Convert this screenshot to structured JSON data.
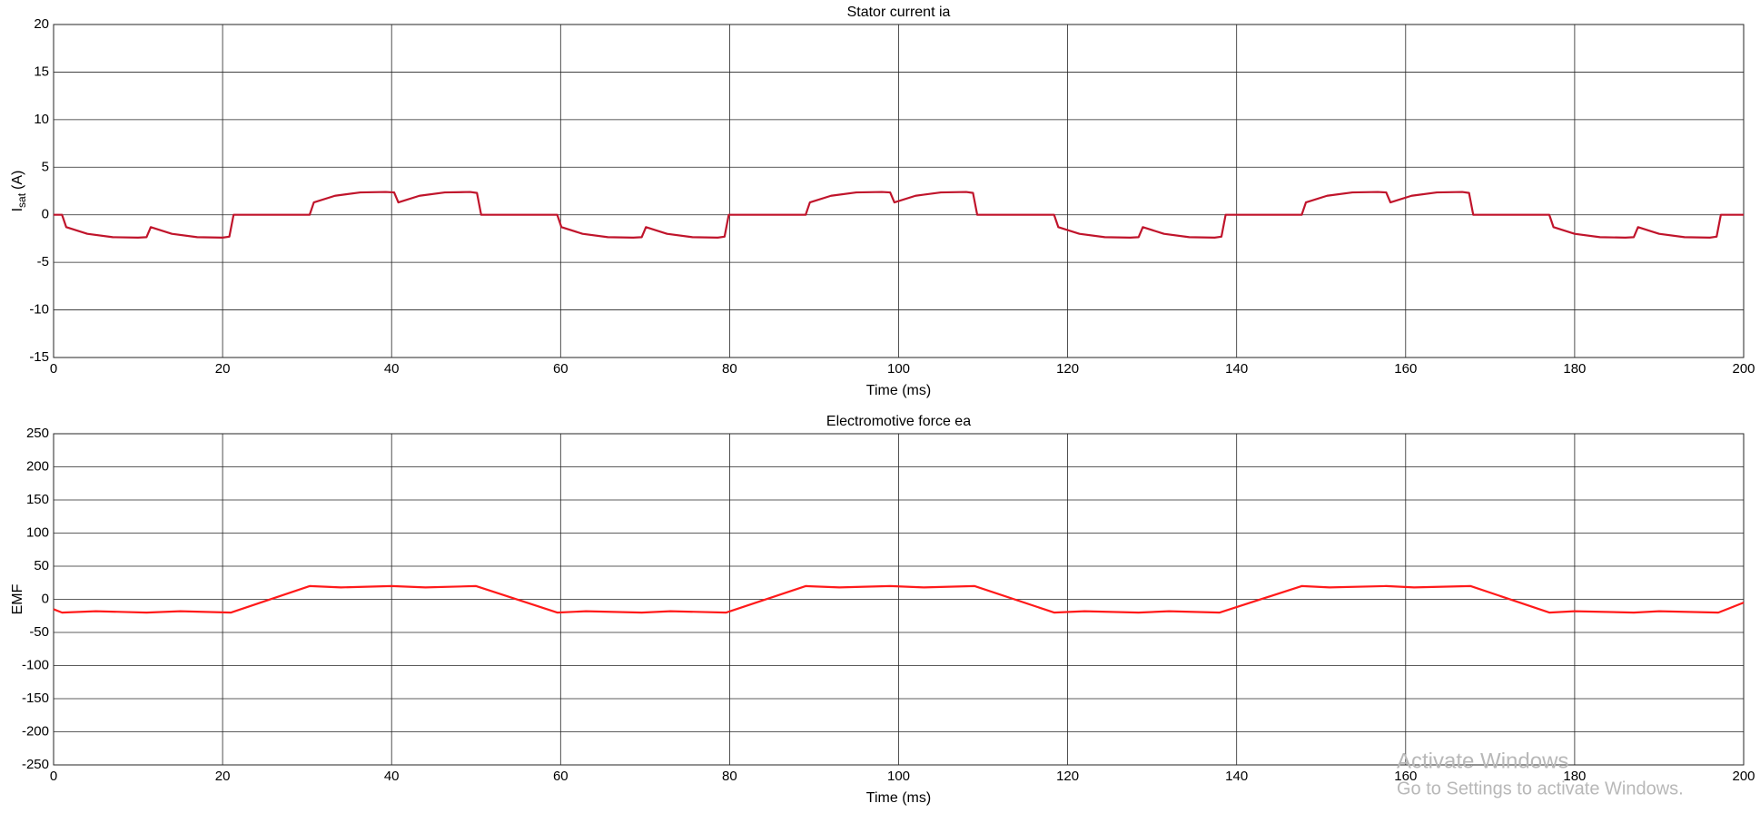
{
  "chart_data": [
    {
      "type": "line",
      "title": "Stator current ia",
      "xlabel": "Time (ms)",
      "ylabel": {
        "main": "I",
        "sub": "sat",
        "suffix": "(A)"
      },
      "xlim": [
        0,
        200
      ],
      "xticks": [
        0,
        20,
        40,
        60,
        80,
        100,
        120,
        140,
        160,
        180,
        200
      ],
      "ylim": [
        -15,
        20
      ],
      "yticks": [
        -15,
        -10,
        -5,
        0,
        5,
        10,
        15,
        20
      ],
      "grid": true,
      "x": [
        0,
        1.0,
        1.5,
        4.0,
        7.0,
        10.0,
        11.0,
        11.5,
        14.0,
        17.0,
        20.0,
        20.8,
        21.3,
        30.3,
        30.8,
        33.3,
        36.3,
        39.3,
        40.3,
        40.8,
        43.3,
        46.3,
        49.3,
        50.1,
        50.6,
        59.6,
        60.1,
        62.6,
        65.6,
        68.6,
        69.6,
        70.1,
        72.6,
        75.6,
        78.6,
        79.4,
        79.9,
        89.0,
        89.5,
        92.0,
        95.0,
        98.0,
        99.0,
        99.5,
        102.0,
        105.0,
        108.0,
        108.8,
        109.3,
        118.4,
        118.9,
        121.4,
        124.4,
        127.4,
        128.4,
        128.9,
        131.4,
        134.4,
        137.4,
        138.2,
        138.7,
        147.7,
        148.2,
        150.7,
        153.7,
        156.7,
        157.7,
        158.2,
        160.7,
        163.7,
        166.7,
        167.5,
        168.0,
        177.0,
        177.5,
        180.0,
        183.0,
        186.0,
        187.0,
        187.5,
        190.0,
        193.0,
        196.0,
        196.8,
        197.3,
        200
      ],
      "series": [
        {
          "name": "ia",
          "color": "#c0142b",
          "values": [
            0,
            0,
            -1.3,
            -2.0,
            -2.35,
            -2.4,
            -2.35,
            -1.3,
            -2.0,
            -2.35,
            -2.4,
            -2.3,
            0,
            0,
            1.3,
            2.0,
            2.35,
            2.4,
            2.35,
            1.3,
            2.0,
            2.35,
            2.4,
            2.3,
            0,
            0,
            -1.3,
            -2.0,
            -2.35,
            -2.4,
            -2.35,
            -1.3,
            -2.0,
            -2.35,
            -2.4,
            -2.3,
            0,
            0,
            1.3,
            2.0,
            2.35,
            2.4,
            2.35,
            1.3,
            2.0,
            2.35,
            2.4,
            2.3,
            0,
            0,
            -1.3,
            -2.0,
            -2.35,
            -2.4,
            -2.35,
            -1.3,
            -2.0,
            -2.35,
            -2.4,
            -2.3,
            0,
            0,
            1.3,
            2.0,
            2.35,
            2.4,
            2.35,
            1.3,
            2.0,
            2.35,
            2.4,
            2.3,
            0,
            0,
            -1.3,
            -2.0,
            -2.35,
            -2.4,
            -2.35,
            -1.3,
            -2.0,
            -2.35,
            -2.4,
            -2.3,
            0,
            0
          ]
        }
      ]
    },
    {
      "type": "line",
      "title": "Electromotive force ea",
      "xlabel": "Time (ms)",
      "ylabel": {
        "main": "EMF"
      },
      "xlim": [
        0,
        200
      ],
      "xticks": [
        0,
        20,
        40,
        60,
        80,
        100,
        120,
        140,
        160,
        180,
        200
      ],
      "ylim": [
        -250,
        250
      ],
      "yticks": [
        -250,
        -200,
        -150,
        -100,
        -50,
        0,
        50,
        100,
        150,
        200,
        250
      ],
      "grid": true,
      "x": [
        0,
        1,
        5,
        11,
        15,
        21,
        30.3,
        34,
        40,
        44,
        50,
        59.6,
        63,
        69.6,
        73,
        79.6,
        89,
        93,
        99,
        103,
        109,
        118.4,
        122,
        128.4,
        132,
        138,
        147.7,
        151,
        157.7,
        161,
        167.7,
        177,
        180,
        187,
        190,
        197,
        200
      ],
      "series": [
        {
          "name": "ea",
          "color": "#ff1a1a",
          "values": [
            -15,
            -20,
            -18,
            -20,
            -18,
            -20,
            20,
            18,
            20,
            18,
            20,
            -20,
            -18,
            -20,
            -18,
            -20,
            20,
            18,
            20,
            18,
            20,
            -20,
            -18,
            -20,
            -18,
            -20,
            20,
            18,
            20,
            18,
            20,
            -20,
            -18,
            -20,
            -18,
            -20,
            -5
          ]
        }
      ]
    }
  ],
  "overlay": {
    "line1": "Activate Windows",
    "line2": "Go to Settings to activate Windows."
  }
}
